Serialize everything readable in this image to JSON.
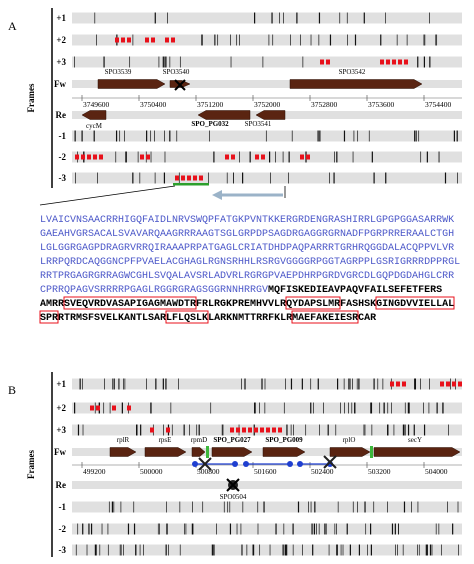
{
  "panel_a": {
    "label": "A",
    "frames_label": "Frames",
    "frame_labels": [
      "+1",
      "+2",
      "+3",
      "Fw",
      "Re",
      "-1",
      "-2",
      "-3"
    ],
    "genes_fw": [
      "SPO3539",
      "SPO3540",
      "SPO3542"
    ],
    "genes_re": [
      "cycM",
      "SPO_PG032",
      "SPO3541"
    ],
    "coordinates": [
      "3749600",
      "3750400",
      "3751200",
      "3752000",
      "3752800",
      "3753600",
      "3754400"
    ],
    "sequence": [
      [
        {
          "text": "LVAICVNSAACRRHIGQFAIDLNRVSWQPFATGKPVNTKKERGRDENGRASHIRRLGPGPGGASARRWK",
          "kind": "upstream"
        }
      ],
      [
        {
          "text": "GAEAHVGRSACALSVAVARQAAGRRRAAGTSGLGRPDPSAGDRGAGGRGRNADFPGRPRRERAALCTGH",
          "kind": "upstream"
        }
      ],
      [
        {
          "text": "LGLGGRGAGPDRAGRVRRQIRAAAPRPATGAGLCRIATDHDPAQPARRRTGRHRQGGDALACQPPVLVR",
          "kind": "upstream"
        }
      ],
      [
        {
          "text": "LRRPQRDCAQGGNCPFPVAELACGHAGLRGNSRHHLRSRGVGGGGRPGGTAGRPPLGSRIGRRRDPPRGL",
          "kind": "upstream"
        }
      ],
      [
        {
          "text": "RRTPRGAGRGRRAGWCGHLSVQALAVSRLADVRLRGRGPVAEPDHRPGRDVGRCDLGQPDGDAHGLCRR",
          "kind": "upstream"
        }
      ],
      [
        {
          "text": "CPRRQPAGVSRRRRPGAGLRGGRGRAGSGGRNNHRRGV",
          "kind": "upstream"
        },
        {
          "text": "MQFISKEDIEAVPAQVFAILSEFETFERS",
          "kind": "orf"
        }
      ],
      [
        {
          "text": "AMRR",
          "kind": "orf"
        },
        {
          "text": "SVEQVRDVASAPIGAGMAWDTR",
          "kind": "peptide"
        },
        {
          "text": "FRLRGKPREMHVVLR",
          "kind": "orf"
        },
        {
          "text": "QYDAPSLMR",
          "kind": "peptide"
        },
        {
          "text": "FASHSK",
          "kind": "orf"
        },
        {
          "text": "GINGDVVIELLAL",
          "kind": "peptide"
        }
      ],
      [
        {
          "text": "SPR",
          "kind": "peptide"
        },
        {
          "text": "RTRMSFSVELKANTLSAR",
          "kind": "orf"
        },
        {
          "text": "LFLQSLK",
          "kind": "peptide"
        },
        {
          "text": "LARKNMTTRRFKLR",
          "kind": "orf"
        },
        {
          "text": "MAEFAKEIESR",
          "kind": "peptide"
        },
        {
          "text": "CAR",
          "kind": "orf"
        }
      ]
    ]
  },
  "panel_b": {
    "label": "B",
    "frames_label": "Frames",
    "frame_labels": [
      "+1",
      "+2",
      "+3",
      "Fw",
      "Re",
      "-1",
      "-2",
      "-3"
    ],
    "genes_fw": [
      "rplR",
      "rpsE",
      "rpmD",
      "SPO_PG027",
      "SPO_PG009",
      "rplO",
      "secY"
    ],
    "genes_re": [
      "SPO0504"
    ],
    "coordinates": [
      "499200",
      "500000",
      "500800",
      "501600",
      "502400",
      "503200",
      "504000"
    ]
  }
}
